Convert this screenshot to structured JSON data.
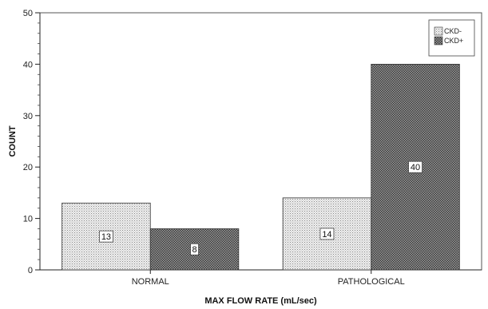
{
  "chart_data": {
    "type": "bar",
    "categories": [
      "NORMAL",
      "PATHOLOGICAL"
    ],
    "series": [
      {
        "name": "CKD-",
        "values": [
          13,
          14
        ],
        "pattern": "light-dots",
        "color": "#d8d8d8"
      },
      {
        "name": "CKD+",
        "values": [
          8,
          40
        ],
        "pattern": "dark-crosshatch",
        "color": "#6a6a6a"
      }
    ],
    "title": "",
    "xlabel": "MAX FLOW RATE (mL/sec)",
    "ylabel": "COUNT",
    "ylim": [
      0,
      50
    ],
    "yticks": [
      0,
      10,
      20,
      30,
      40,
      50
    ],
    "grid": false,
    "legend_position": "top-right",
    "data_labels": true
  }
}
